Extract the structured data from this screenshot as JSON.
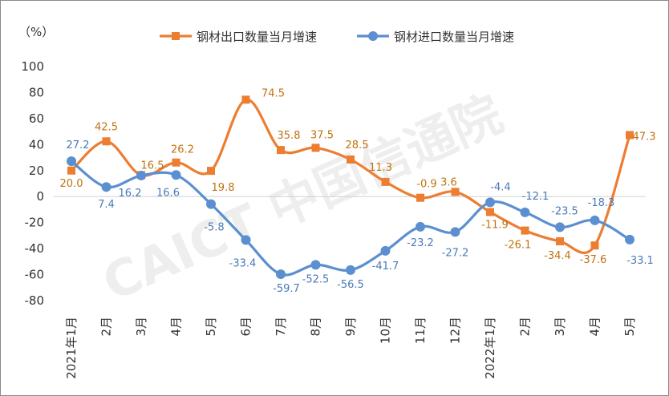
{
  "chart_data": {
    "type": "line",
    "title": "",
    "unit_label": "（%）",
    "ylabel": "",
    "xlabel": "",
    "ylim": [
      -80,
      100
    ],
    "yticks": [
      100,
      80,
      60,
      40,
      20,
      0,
      -20,
      -40,
      -60,
      -80
    ],
    "categories": [
      "2021年1月",
      "2月",
      "3月",
      "4月",
      "5月",
      "6月",
      "7月",
      "8月",
      "9月",
      "10月",
      "11月",
      "12月",
      "2022年1月",
      "2月",
      "3月",
      "4月",
      "5月"
    ],
    "series": [
      {
        "name": "钢材出口数量当月增速",
        "color": "#ED7D31",
        "label_color": "#C0720F",
        "marker": "square",
        "values": [
          20.0,
          42.5,
          16.5,
          26.2,
          19.8,
          74.5,
          35.8,
          37.5,
          28.5,
          11.3,
          -0.9,
          3.6,
          -11.9,
          -26.1,
          -34.4,
          -37.6,
          47.3
        ],
        "labels": [
          "20.0",
          "42.5",
          "16.5",
          "26.2",
          "19.8",
          "74.5",
          "35.8",
          "37.5",
          "28.5",
          "11.3",
          "-0.9",
          "3.6",
          "-11.9",
          "-26.1",
          "-34.4",
          "-37.6",
          "47.3"
        ]
      },
      {
        "name": "钢材进口数量当月增速",
        "color": "#5B8FD0",
        "label_color": "#4A7AB8",
        "marker": "circle",
        "values": [
          27.2,
          7.4,
          16.2,
          16.6,
          -5.8,
          -33.4,
          -59.7,
          -52.5,
          -56.5,
          -41.7,
          -23.2,
          -27.2,
          -4.4,
          -12.1,
          -23.5,
          -18.3,
          -33.1
        ],
        "labels": [
          "27.2",
          "7.4",
          "16.2",
          "16.6",
          "-5.8",
          "-33.4",
          "-59.7",
          "-52.5",
          "-56.5",
          "-41.7",
          "-23.2",
          "-27.2",
          "-4.4",
          "-12.1",
          "-23.5",
          "-18.3",
          "-33.1"
        ]
      }
    ],
    "grid": false,
    "legend_position": "top"
  },
  "watermark": {
    "text": "CAICT 中国信通院"
  }
}
